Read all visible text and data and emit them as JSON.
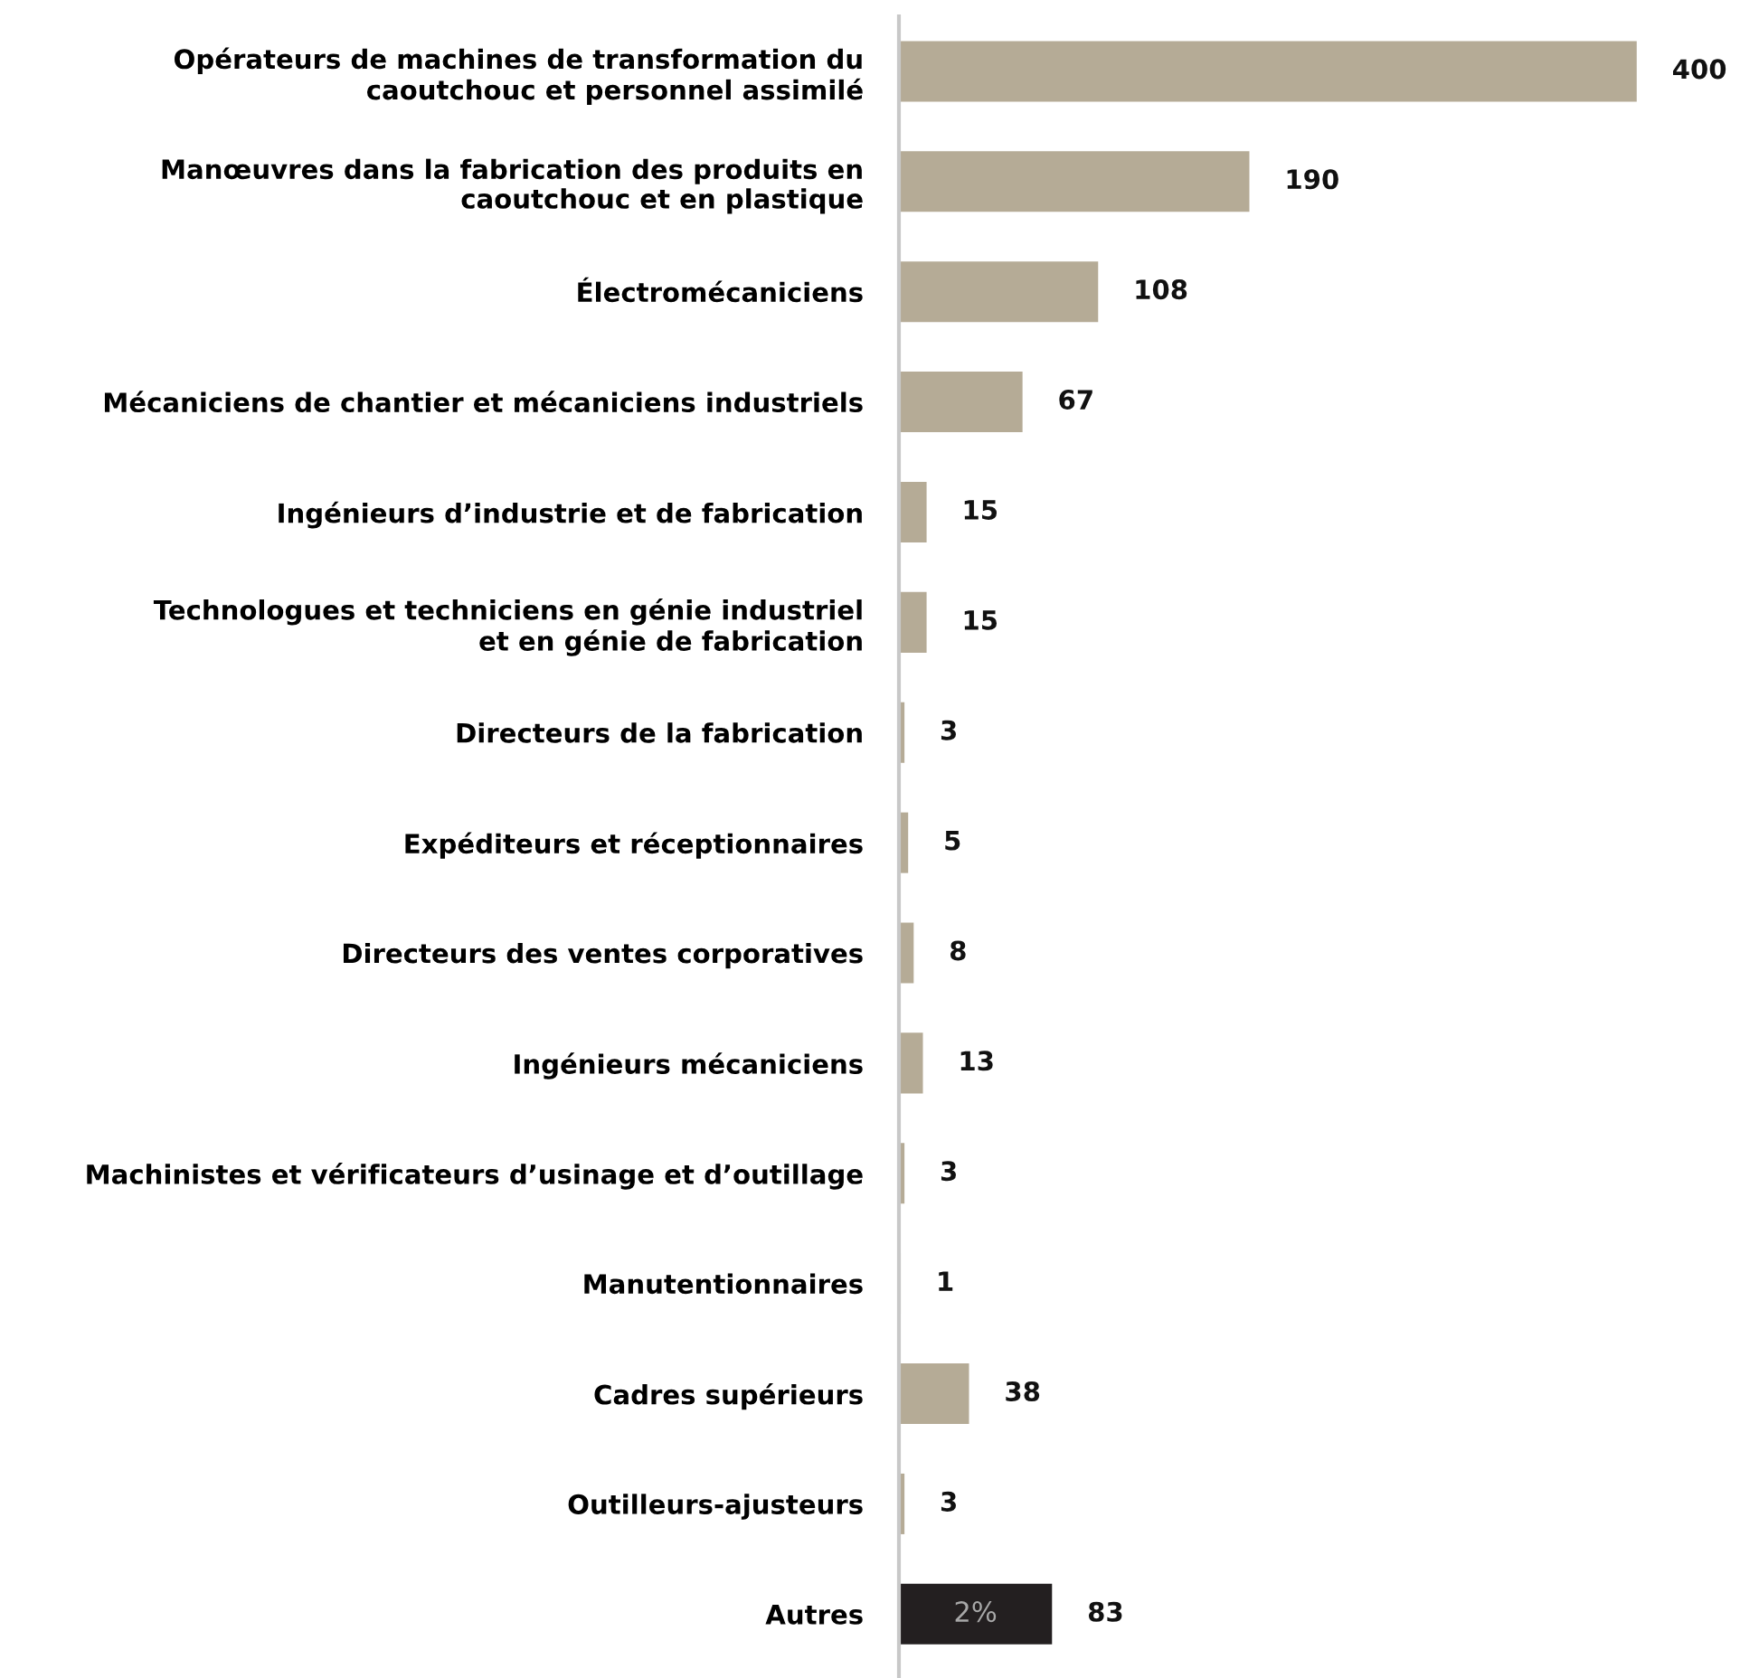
{
  "chart_data": {
    "type": "bar",
    "orientation": "horizontal",
    "categories": [
      "Opérateurs de machines de transformation du\ncaoutchouc et personnel assimilé",
      "Manœuvres dans la fabrication des produits en\ncaoutchouc et en plastique",
      "Électromécaniciens",
      "Mécaniciens de chantier et mécaniciens industriels",
      "Ingénieurs d’industrie et de fabrication",
      "Technologues et techniciens en génie industriel\net en génie de fabrication",
      "Directeurs de la fabrication",
      "Expéditeurs et réceptionnaires",
      "Directeurs des ventes corporatives",
      "Ingénieurs mécaniciens",
      "Machinistes et vérificateurs d’usinage et d’outillage",
      "Manutentionnaires",
      "Cadres supérieurs",
      "Outilleurs-ajusteurs",
      "Autres"
    ],
    "values": [
      400,
      190,
      108,
      67,
      15,
      15,
      3,
      5,
      8,
      13,
      3,
      1,
      38,
      3,
      83
    ],
    "colors": [
      "#b5ab96",
      "#b5ab96",
      "#b5ab96",
      "#b5ab96",
      "#b5ab96",
      "#b5ab96",
      "#b5ab96",
      "#b5ab96",
      "#b5ab96",
      "#b5ab96",
      "#b5ab96",
      "#b5ab96",
      "#b5ab96",
      "#b5ab96",
      "#231f20"
    ],
    "data_labels": true,
    "grid": false,
    "legend": false,
    "tick_labels": "y",
    "annotations": [
      "2%"
    ]
  }
}
